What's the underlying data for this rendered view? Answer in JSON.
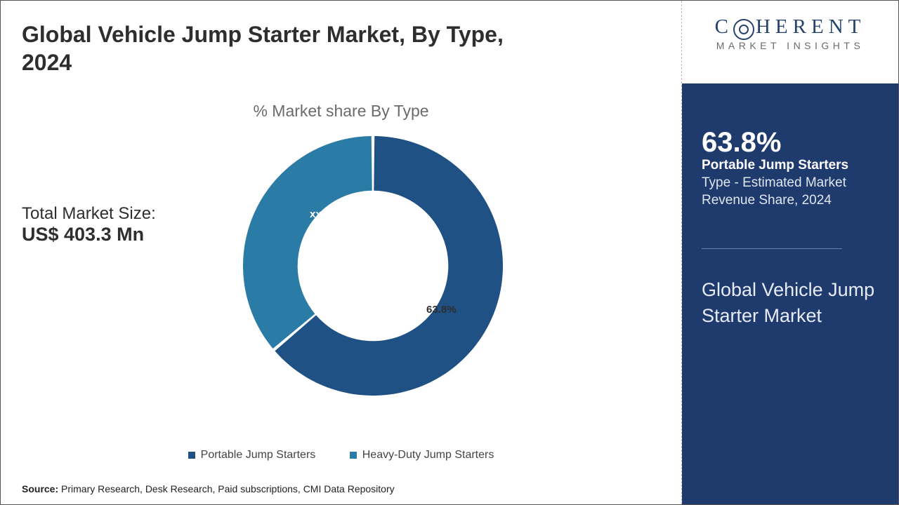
{
  "title": "Global Vehicle Jump Starter Market, By Type, 2024",
  "chart": {
    "type": "donut",
    "subtitle": "% Market share By Type",
    "inner_radius_ratio": 0.58,
    "outer_radius": 185,
    "start_angle_deg": 0,
    "background_color": "#ffffff",
    "series": [
      {
        "name": "Portable Jump Starters",
        "value": 63.8,
        "label": "63.8%",
        "color": "#1f5184",
        "label_color": "#2e2e2e"
      },
      {
        "name": "Heavy-Duty Jump Starters",
        "value": 36.2,
        "label": "xx.x%",
        "color": "#2a7ba5",
        "label_color": "#ffffff"
      }
    ]
  },
  "total": {
    "label": "Total Market Size:",
    "value": "US$ 403.3 Mn"
  },
  "legend": {
    "items": [
      {
        "label": "Portable Jump Starters",
        "color": "#1f5184"
      },
      {
        "label": "Heavy-Duty Jump Starters",
        "color": "#2a7ba5"
      }
    ],
    "fontsize": 16,
    "swatch_size": 10
  },
  "source": {
    "prefix": "Source:",
    "text": " Primary Research, Desk Research, Paid subscriptions, CMI Data Repository"
  },
  "sidebar": {
    "logo": {
      "line1": "HERENT",
      "line2": "MARKET INSIGHTS",
      "color": "#26436d"
    },
    "panel_bg": "#1f3b6e",
    "stat_pct": "63.8%",
    "stat_name": "Portable Jump Starters",
    "stat_desc": "Type - Estimated Market Revenue Share, 2024",
    "panel_title": "Global Vehicle Jump Starter Market"
  },
  "frame_border_color": "#555555",
  "title_fontsize": 32,
  "title_color": "#2e2e2e"
}
